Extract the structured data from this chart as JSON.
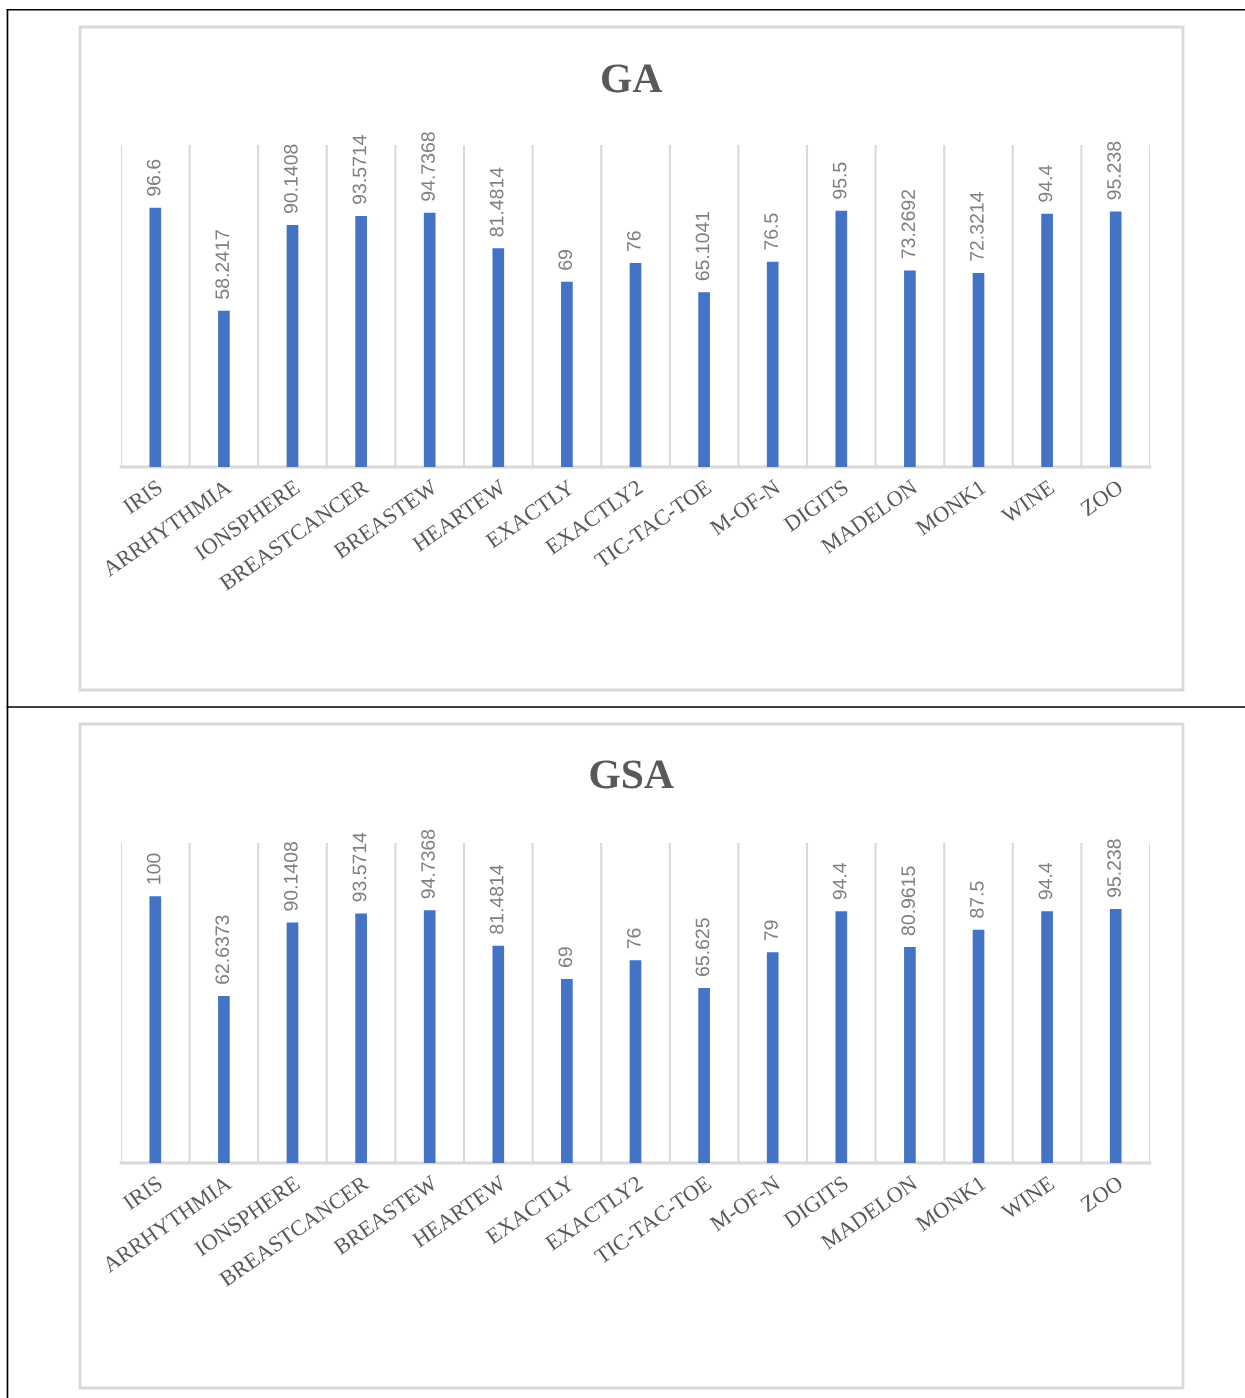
{
  "chart_data": [
    {
      "type": "bar",
      "title": "GA",
      "categories": [
        "IRIS",
        "ARRHYTHMIA",
        "IONSPHERE",
        "BREASTCANCER",
        "BREASTEW",
        "HEARTEW",
        "EXACTLY",
        "EXACTLY2",
        "TIC-TAC-TOE",
        "M-OF-N",
        "DIGITS",
        "MADELON",
        "MONK1",
        "WINE",
        "ZOO"
      ],
      "values": [
        96.6,
        58.2417,
        90.1408,
        93.5714,
        94.7368,
        81.4814,
        69,
        76,
        65.1041,
        76.5,
        95.5,
        73.2692,
        72.3214,
        94.4,
        95.238
      ],
      "color": "#4472c4",
      "ylim": [
        0,
        120
      ],
      "tick_labels": "x",
      "grid": "x",
      "data_labels": true
    },
    {
      "type": "bar",
      "title": "GSA",
      "categories": [
        "IRIS",
        "ARRHYTHMIA",
        "IONSPHERE",
        "BREASTCANCER",
        "BREASTEW",
        "HEARTEW",
        "EXACTLY",
        "EXACTLY2",
        "TIC-TAC-TOE",
        "M-OF-N",
        "DIGITS",
        "MADELON",
        "MONK1",
        "WINE",
        "ZOO"
      ],
      "values": [
        100,
        62.6373,
        90.1408,
        93.5714,
        94.7368,
        81.4814,
        69,
        76,
        65.625,
        79,
        94.4,
        80.9615,
        87.5,
        94.4,
        95.238
      ],
      "color": "#4472c4",
      "ylim": [
        0,
        120
      ],
      "tick_labels": "x",
      "grid": "x",
      "data_labels": true
    }
  ]
}
